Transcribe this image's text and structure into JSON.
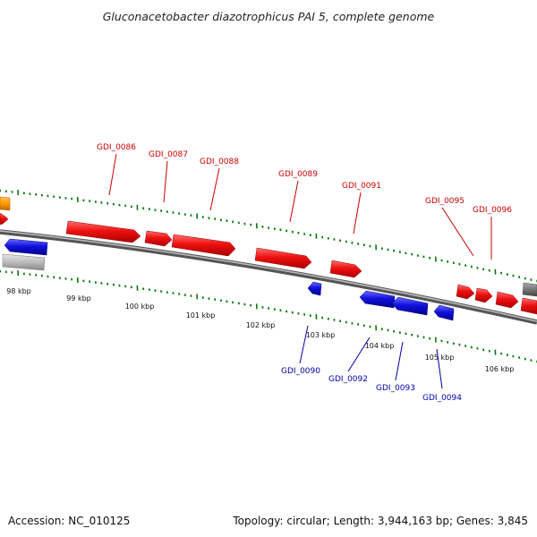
{
  "title": "Gluconacetobacter diazotrophicus PAI 5, complete genome",
  "footer": {
    "accession": "Accession: NC_010125",
    "summary": "Topology: circular; Length: 3,944,163 bp; Genes: 3,845"
  },
  "colors": {
    "forward_gene": "#ee1111",
    "reverse_gene": "#1111dd",
    "forward_label": "#cc0000",
    "reverse_label": "#0000aa",
    "tick": "#117711",
    "backbone": "#666666",
    "other_feature_orange": "#ff9900",
    "other_feature_gray": "#bbbbbb",
    "other_feature_dark": "#777777"
  },
  "kbp_ticks": [
    "98 kbp",
    "99 kbp",
    "100 kbp",
    "101 kbp",
    "102 kbp",
    "103 kbp",
    "104 kbp",
    "105 kbp",
    "106 kbp"
  ],
  "forward_genes": [
    "GDI_0086",
    "GDI_0087",
    "GDI_0088",
    "GDI_0089",
    "GDI_0091",
    "GDI_0095",
    "GDI_0096"
  ],
  "reverse_genes": [
    "GDI_0090",
    "GDI_0092",
    "GDI_0093",
    "GDI_0094"
  ]
}
